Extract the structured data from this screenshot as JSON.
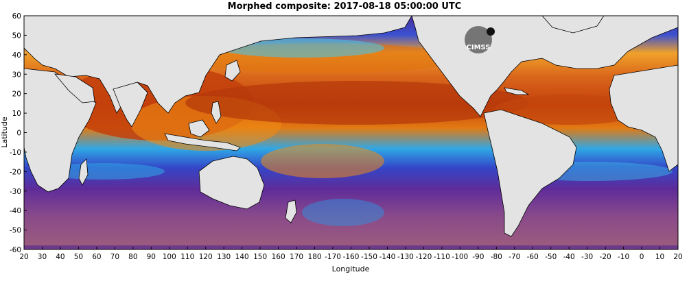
{
  "title": "Morphed composite: 2017-08-18 05:00:00 UTC",
  "x_axis": {
    "label": "Longitude",
    "ticks": [
      "20",
      "30",
      "40",
      "50",
      "60",
      "70",
      "80",
      "90",
      "100",
      "110",
      "120",
      "130",
      "140",
      "150",
      "160",
      "170",
      "180",
      "-170",
      "-160",
      "-150",
      "-140",
      "-130",
      "-120",
      "-110",
      "-100",
      "-90",
      "-80",
      "-70",
      "-60",
      "-50",
      "-40",
      "-30",
      "-20",
      "-10",
      "0",
      "10",
      "20"
    ]
  },
  "y_axis": {
    "label": "Latitude",
    "ticks": [
      "60",
      "50",
      "40",
      "30",
      "20",
      "10",
      "0",
      "-10",
      "-20",
      "-30",
      "-40",
      "-50",
      "-60"
    ]
  },
  "logo": {
    "text": "CIMSS",
    "icon": "cimss-logo-icon"
  },
  "colors": {
    "land": "#e3e3e3",
    "very_high": "#7a1200",
    "high": "#c6420a",
    "moderate": "#ef8a12",
    "mid": "#3fb6e8",
    "low": "#3a46c9",
    "very_low": "#6a2a9a",
    "driest": "#9a5a7a"
  }
}
